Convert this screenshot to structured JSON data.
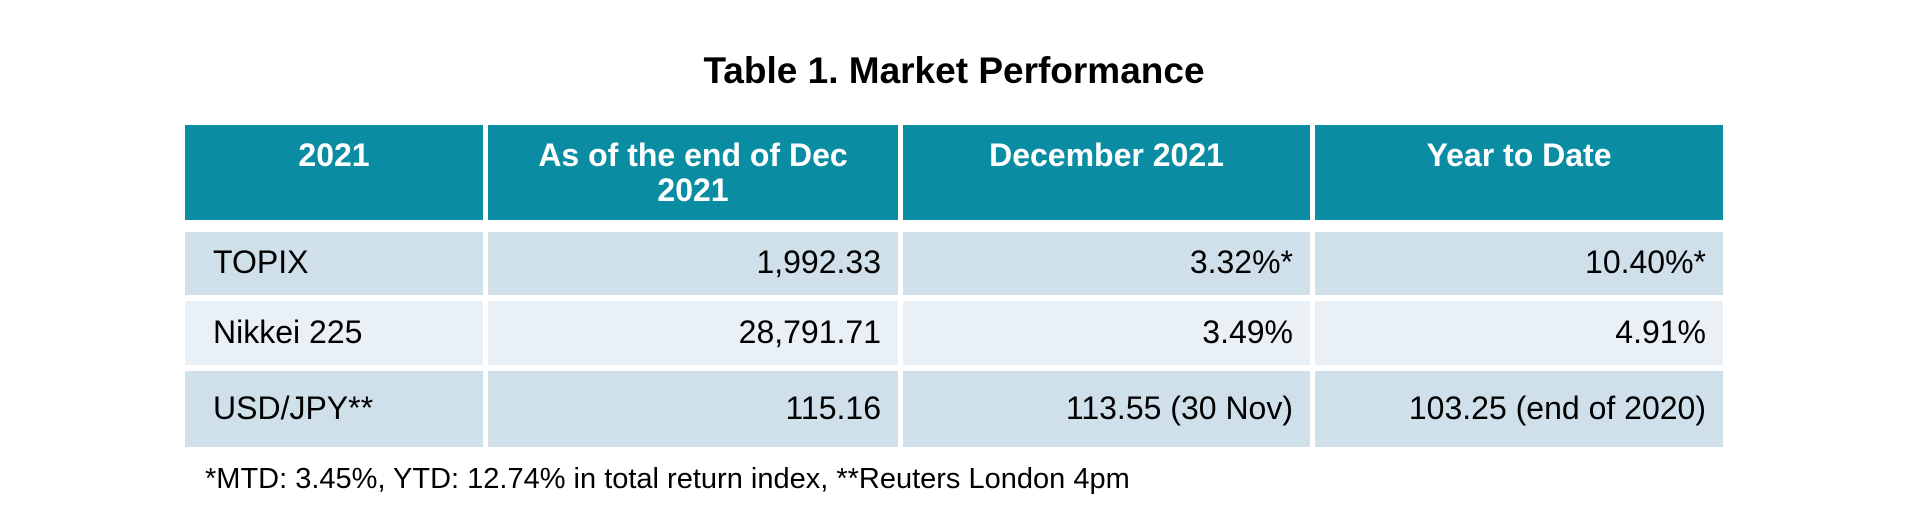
{
  "title": "Table 1. Market Performance",
  "table": {
    "columns": [
      "2021",
      "As of the end of Dec 2021",
      "December 2021",
      "Year to Date"
    ],
    "rows": [
      {
        "label": "TOPIX",
        "values": [
          "1,992.33",
          "3.32%*",
          "10.40%*"
        ]
      },
      {
        "label": "Nikkei 225",
        "values": [
          "28,791.71",
          "3.49%",
          "4.91%"
        ]
      },
      {
        "label": "USD/JPY**",
        "values": [
          "115.16",
          "113.55 (30 Nov)",
          "103.25 (end of 2020)"
        ]
      }
    ]
  },
  "footnote": "*MTD: 3.45%, YTD: 12.74% in total return index, **Reuters London 4pm",
  "colors": {
    "header_bg": "#0a8da2",
    "header_text": "#ffffff",
    "row_odd_bg": "#cfe0ea",
    "row_even_bg": "#e9f1f7",
    "body_text": "#000000",
    "page_bg": "#ffffff"
  }
}
